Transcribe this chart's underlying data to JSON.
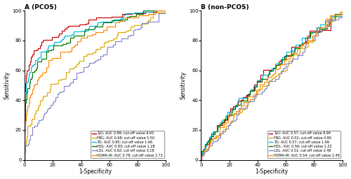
{
  "panel_A_title": "A (PCOS)",
  "panel_B_title": "B (non-PCOS)",
  "xlabel": "1-Specificity",
  "ylabel": "Sensitivity",
  "xlim": [
    0,
    100
  ],
  "ylim": [
    0,
    100
  ],
  "xticks": [
    0,
    20,
    40,
    60,
    80,
    100
  ],
  "yticks": [
    0,
    20,
    40,
    60,
    80,
    100
  ],
  "colors": {
    "TyG": "#cc0000",
    "FBG": "#ddaa00",
    "TG": "#00bbdd",
    "HDL": "#007700",
    "LDL": "#8888cc",
    "HOMA": "#ff8800"
  },
  "legend_A": [
    "TyG: AUC 0.88; cut-off value 8.65",
    "FBG: AUC 0.68; cut-off value 5.50",
    "TG: AUC 0.85; cut-off value 1.66",
    "HDL: AUC 0.83; cut-off value 1.28",
    "LDL: AUC 0.62; cut-off value 3.18",
    "HOMA-IR: AUC 0.78; cut-off value 2.72"
  ],
  "legend_B": [
    "TyG: AUC 0.57; cut-off value 8.94",
    "FBG: AUC 0.52; cut-off value 4.80",
    "TG: AUC 0.57; cut-off value 1.69",
    "HDL: AUC 0.56; cut-off value 1.23",
    "LDL: AUC 0.51; cut-off value 2.46",
    "HOMA-IR: AUC 0.54; cut-off value 2.48"
  ],
  "auc_A": {
    "TyG": 0.88,
    "FBG": 0.68,
    "TG": 0.85,
    "HDL": 0.83,
    "LDL": 0.62,
    "HOMA": 0.78
  },
  "auc_B": {
    "TyG": 0.57,
    "FBG": 0.52,
    "TG": 0.57,
    "HDL": 0.56,
    "LDL": 0.51,
    "HOMA": 0.54
  },
  "figsize": [
    5.0,
    2.56
  ],
  "dpi": 100
}
